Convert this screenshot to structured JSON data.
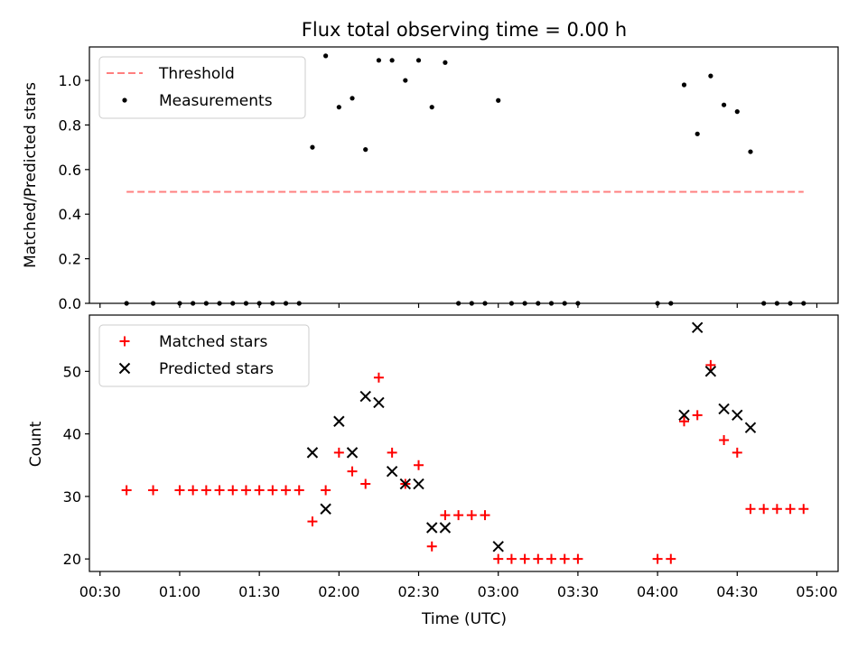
{
  "chart_data": [
    {
      "type": "scatter",
      "title": "Flux total observing time = 0.00 h",
      "xlabel": "",
      "ylabel": "Matched/Predicted stars",
      "xlim": [
        "00:26",
        "05:08"
      ],
      "ylim": [
        0,
        1.15
      ],
      "yticks": [
        0.0,
        0.2,
        0.4,
        0.6,
        0.8,
        1.0
      ],
      "yticklabels": [
        "0.0",
        "0.2",
        "0.4",
        "0.6",
        "0.8",
        "1.0"
      ],
      "legend_location": "upper left",
      "grid": false,
      "series": [
        {
          "name": "Threshold",
          "kind": "line",
          "style": "dashed",
          "color": "#ff7f7f",
          "x": [
            "00:40",
            "04:55"
          ],
          "y": [
            0.5,
            0.5
          ]
        },
        {
          "name": "Measurements",
          "kind": "scatter",
          "marker": "dot",
          "color": "#000000",
          "x": [
            "00:40",
            "00:50",
            "01:00",
            "01:05",
            "01:10",
            "01:15",
            "01:20",
            "01:25",
            "01:30",
            "01:35",
            "01:40",
            "01:45",
            "01:50",
            "01:55",
            "02:00",
            "02:05",
            "02:10",
            "02:15",
            "02:20",
            "02:25",
            "02:30",
            "02:35",
            "02:40",
            "02:45",
            "02:50",
            "02:55",
            "03:00",
            "03:05",
            "03:10",
            "03:15",
            "03:20",
            "03:25",
            "03:30",
            "04:00",
            "04:05",
            "04:10",
            "04:15",
            "04:20",
            "04:25",
            "04:30",
            "04:35",
            "04:40",
            "04:45",
            "04:50",
            "04:55"
          ],
          "y": [
            0,
            0,
            0,
            0,
            0,
            0,
            0,
            0,
            0,
            0,
            0,
            0,
            0.7,
            1.11,
            0.88,
            0.92,
            0.69,
            1.09,
            1.09,
            1.0,
            1.09,
            0.88,
            1.08,
            0,
            0,
            0,
            0.91,
            0,
            0,
            0,
            0,
            0,
            0,
            0,
            0,
            0.98,
            0.76,
            1.02,
            0.89,
            0.86,
            0.68,
            0,
            0,
            0,
            0
          ]
        }
      ]
    },
    {
      "type": "scatter",
      "title": "",
      "xlabel": "Time (UTC)",
      "ylabel": "Count",
      "xlim": [
        "00:26",
        "05:08"
      ],
      "ylim": [
        18,
        59
      ],
      "yticks": [
        20,
        30,
        40,
        50
      ],
      "yticklabels": [
        "20",
        "30",
        "40",
        "50"
      ],
      "xticks": [
        "00:30",
        "01:00",
        "01:30",
        "02:00",
        "02:30",
        "03:00",
        "03:30",
        "04:00",
        "04:30",
        "05:00"
      ],
      "legend_location": "upper left",
      "grid": false,
      "series": [
        {
          "name": "Matched stars",
          "kind": "scatter",
          "marker": "plus",
          "color": "#ff0000",
          "x": [
            "00:40",
            "00:50",
            "01:00",
            "01:05",
            "01:10",
            "01:15",
            "01:20",
            "01:25",
            "01:30",
            "01:35",
            "01:40",
            "01:45",
            "01:50",
            "01:55",
            "02:00",
            "02:05",
            "02:10",
            "02:15",
            "02:20",
            "02:25",
            "02:30",
            "02:35",
            "02:40",
            "02:45",
            "02:50",
            "02:55",
            "03:00",
            "03:05",
            "03:10",
            "03:15",
            "03:20",
            "03:25",
            "03:30",
            "04:00",
            "04:05",
            "04:10",
            "04:15",
            "04:20",
            "04:25",
            "04:30",
            "04:35",
            "04:40",
            "04:45",
            "04:50",
            "04:55"
          ],
          "y": [
            31,
            31,
            31,
            31,
            31,
            31,
            31,
            31,
            31,
            31,
            31,
            31,
            26,
            31,
            37,
            34,
            32,
            49,
            37,
            32,
            35,
            22,
            27,
            27,
            27,
            27,
            20,
            20,
            20,
            20,
            20,
            20,
            20,
            20,
            20,
            42,
            43,
            51,
            39,
            37,
            28,
            28,
            28,
            28,
            28
          ]
        },
        {
          "name": "Predicted stars",
          "kind": "scatter",
          "marker": "x",
          "color": "#000000",
          "x": [
            "01:50",
            "01:55",
            "02:00",
            "02:05",
            "02:10",
            "02:15",
            "02:20",
            "02:25",
            "02:30",
            "02:35",
            "02:40",
            "03:00",
            "04:10",
            "04:15",
            "04:20",
            "04:25",
            "04:30",
            "04:35"
          ],
          "y": [
            37,
            28,
            42,
            37,
            46,
            45,
            34,
            32,
            32,
            25,
            25,
            22,
            43,
            57,
            50,
            44,
            43,
            41
          ]
        }
      ]
    }
  ]
}
